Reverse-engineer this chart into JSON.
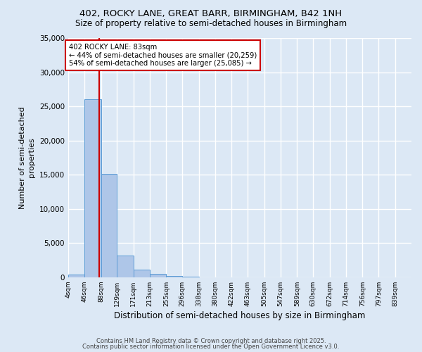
{
  "title1": "402, ROCKY LANE, GREAT BARR, BIRMINGHAM, B42 1NH",
  "title2": "Size of property relative to semi-detached houses in Birmingham",
  "xlabel": "Distribution of semi-detached houses by size in Birmingham",
  "ylabel": "Number of semi-detached\nproperties",
  "bins": [
    "4sqm",
    "46sqm",
    "88sqm",
    "129sqm",
    "171sqm",
    "213sqm",
    "255sqm",
    "296sqm",
    "338sqm",
    "380sqm",
    "422sqm",
    "463sqm",
    "505sqm",
    "547sqm",
    "589sqm",
    "630sqm",
    "672sqm",
    "714sqm",
    "756sqm",
    "797sqm",
    "839sqm"
  ],
  "bin_edges": [
    4,
    46,
    88,
    129,
    171,
    213,
    255,
    296,
    338,
    380,
    422,
    463,
    505,
    547,
    589,
    630,
    672,
    714,
    756,
    797,
    839
  ],
  "counts": [
    400,
    26000,
    15100,
    3200,
    1100,
    500,
    200,
    100,
    0,
    0,
    0,
    0,
    0,
    0,
    0,
    0,
    0,
    0,
    0,
    0
  ],
  "bar_color": "#aec6e8",
  "bar_edge_color": "#5b9bd5",
  "property_size": 83,
  "pct_smaller": 44,
  "pct_smaller_n": 20259,
  "pct_larger": 54,
  "pct_larger_n": 25085,
  "vline_color": "#cc0000",
  "annotation_box_color": "#cc0000",
  "ylim": [
    0,
    35000
  ],
  "yticks": [
    0,
    5000,
    10000,
    15000,
    20000,
    25000,
    30000,
    35000
  ],
  "footer1": "Contains HM Land Registry data © Crown copyright and database right 2025.",
  "footer2": "Contains public sector information licensed under the Open Government Licence v3.0.",
  "background_color": "#dce8f5",
  "grid_color": "#ffffff"
}
